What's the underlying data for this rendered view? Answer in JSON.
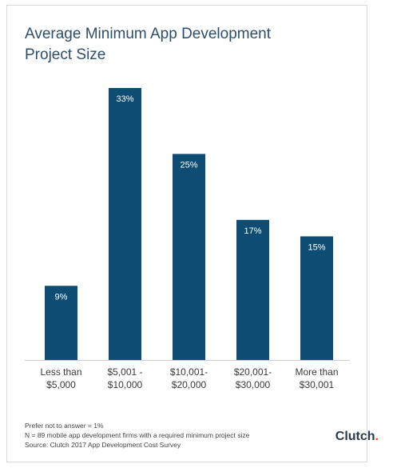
{
  "title_line1": "Average Minimum App Development",
  "title_line2": "Project Size",
  "chart_data": {
    "type": "bar",
    "categories": [
      [
        "Less than",
        "$5,000"
      ],
      [
        "$5,001 -",
        "$10,000"
      ],
      [
        "$10,001-",
        "$20,000"
      ],
      [
        "$20,001-",
        "$30,000"
      ],
      [
        "More than",
        "$30,001"
      ]
    ],
    "values": [
      9,
      33,
      25,
      17,
      15
    ],
    "data_labels": [
      "9%",
      "33%",
      "25%",
      "17%",
      "15%"
    ],
    "ylim": [
      0,
      33
    ],
    "bar_color": "#0f4c74",
    "grid": false,
    "axis_line_color": "#cfcfcf"
  },
  "footnotes": {
    "line1": "Prefer not to answer = 1%",
    "line2": "N = 89 mobile app development firms with a required minimum project size",
    "line3": "Source: Clutch 2017 App Development Cost Survey"
  },
  "brand": {
    "name": "Clutch",
    "accent_color": "#e8492f"
  }
}
